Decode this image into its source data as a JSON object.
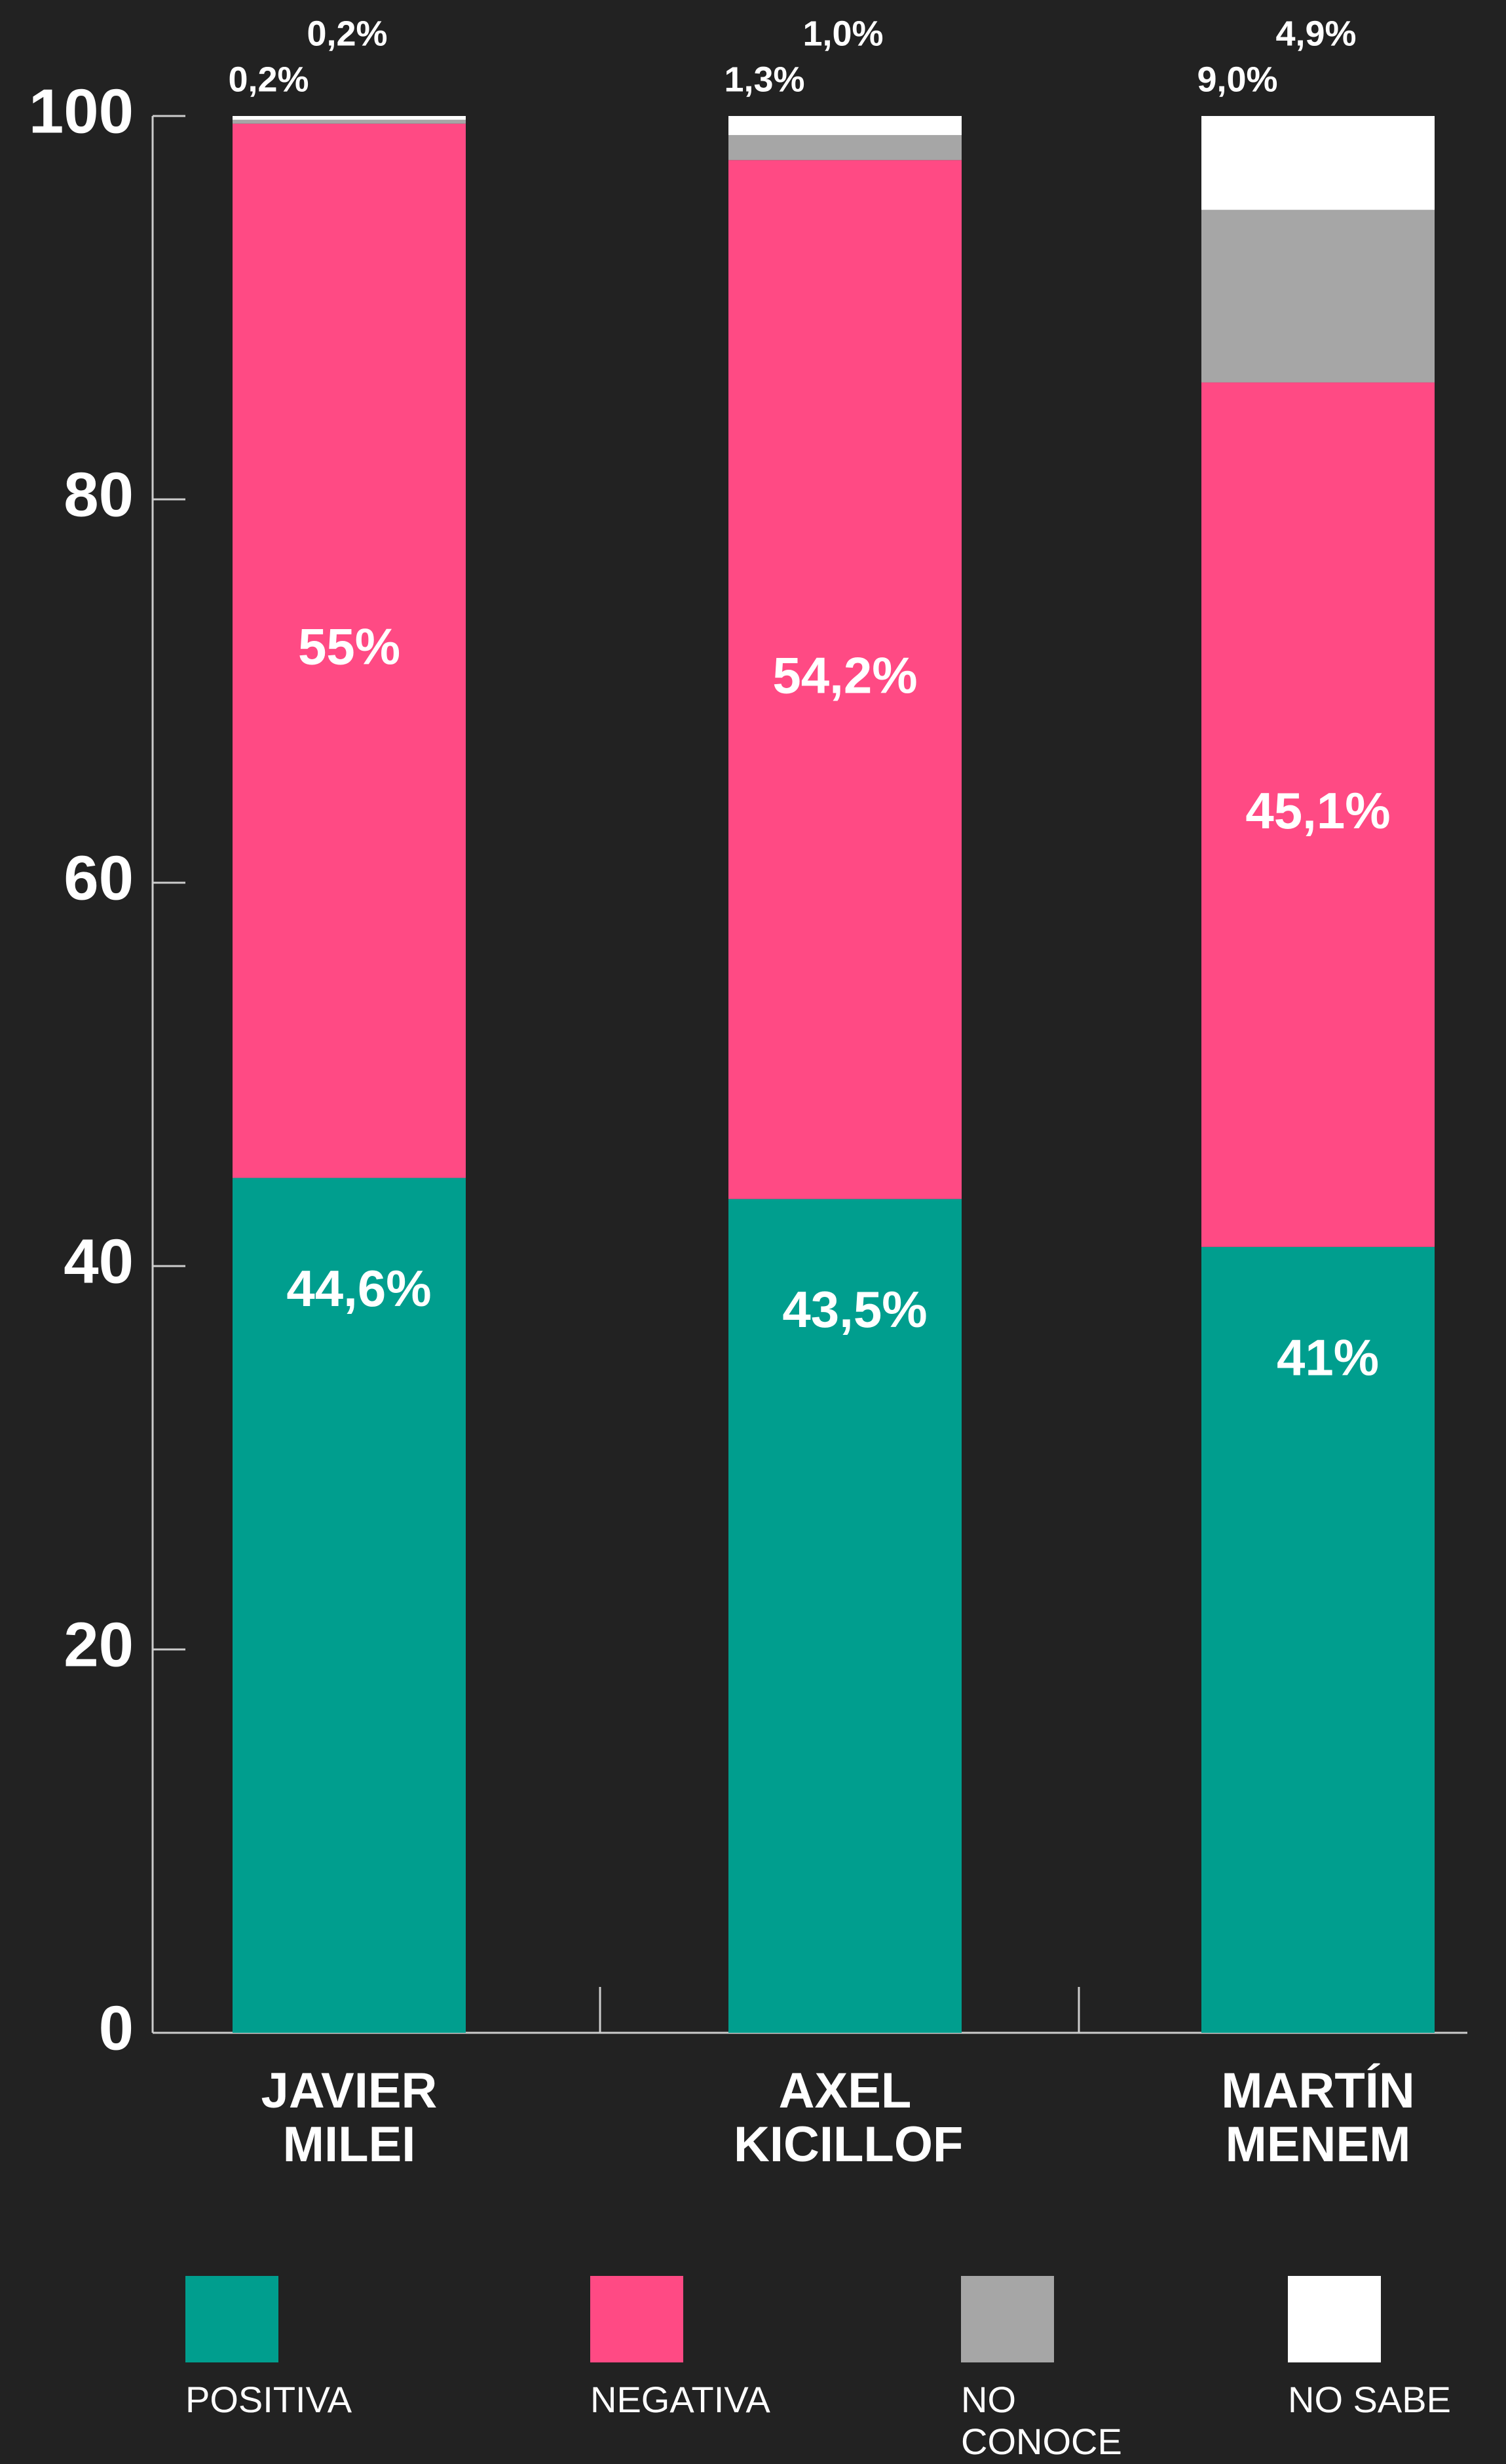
{
  "chart_data": {
    "type": "stacked-bar",
    "categories": [
      "JAVIER MILEI",
      "AXEL KICILLOF",
      "MARTÍN MENEM"
    ],
    "series": [
      {
        "name": "POSITIVA",
        "color": "#009e8e",
        "values": [
          44.6,
          43.5,
          41
        ],
        "value_labels": [
          "44,6%",
          "43,5%",
          "41%"
        ]
      },
      {
        "name": "NEGATIVA",
        "color": "#ff4a84",
        "values": [
          55,
          54.2,
          45.1
        ],
        "value_labels": [
          "55%",
          "54,2%",
          "45,1%"
        ]
      },
      {
        "name": "NO CONOCE",
        "color": "#a6a6a6",
        "values": [
          0.2,
          1.3,
          9.0
        ],
        "value_labels": [
          "0,2%",
          "1,3%",
          "9,0%"
        ]
      },
      {
        "name": "NO SABE",
        "color": "#ffffff",
        "values": [
          0.2,
          1.0,
          4.9
        ],
        "value_labels": [
          "0,2%",
          "1,0%",
          "4,9%"
        ]
      }
    ],
    "ylim": [
      0,
      100
    ],
    "yticks": [
      0,
      20,
      40,
      60,
      80,
      100
    ],
    "legend": "bottom"
  }
}
